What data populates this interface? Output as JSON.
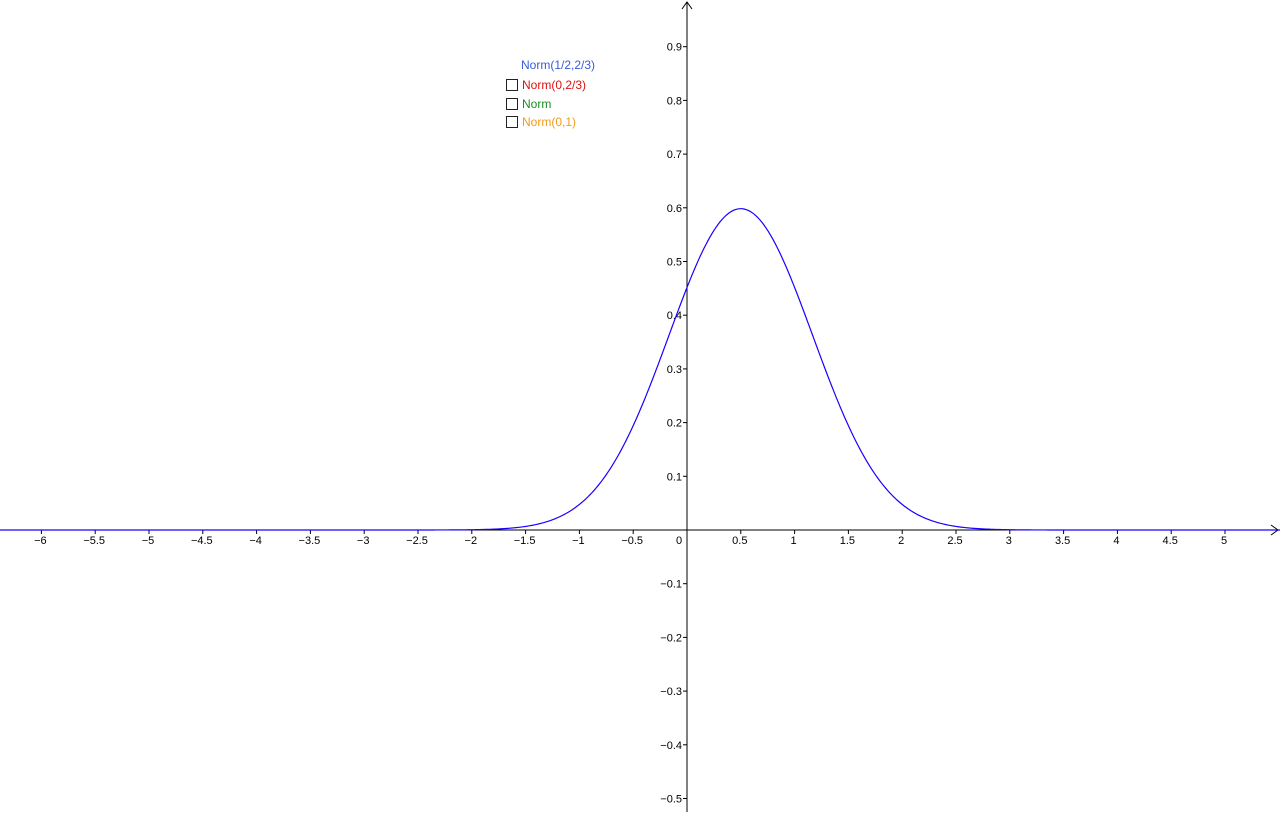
{
  "chart_data": {
    "type": "line",
    "title": "",
    "xlabel": "",
    "ylabel": "",
    "xlim": [
      -6.35,
      5.5
    ],
    "ylim": [
      -0.52,
      0.98
    ],
    "x_ticks": [
      -6,
      -5.5,
      -5,
      -4.5,
      -4,
      -3.5,
      -3,
      -2.5,
      -2,
      -1.5,
      -1,
      -0.5,
      0.5,
      1,
      1.5,
      2,
      2.5,
      3,
      3.5,
      4,
      4.5,
      5
    ],
    "y_ticks": [
      -0.5,
      -0.4,
      -0.3,
      -0.2,
      -0.1,
      0.1,
      0.2,
      0.3,
      0.4,
      0.5,
      0.6,
      0.7,
      0.8,
      0.9
    ],
    "origin_label": "0",
    "grid": false,
    "series": [
      {
        "name": "Norm(1/2,2/3)",
        "function": "normal_pdf",
        "mean": 0.5,
        "sd": 0.6667,
        "color": "#1a00ff",
        "visible": true,
        "sample_points": [
          [
            -2,
            0.0004
          ],
          [
            -1.5,
            0.007
          ],
          [
            -1,
            0.049
          ],
          [
            -0.5,
            0.194
          ],
          [
            0,
            0.453
          ],
          [
            0.5,
            0.598
          ],
          [
            1,
            0.453
          ],
          [
            1.5,
            0.194
          ],
          [
            2,
            0.049
          ],
          [
            2.5,
            0.007
          ],
          [
            3,
            0.0004
          ]
        ]
      }
    ]
  },
  "legend": {
    "title": {
      "label": "Norm(1/2,2/3)",
      "color": "#3a5cdb"
    },
    "items": [
      {
        "label": "Norm(0,2/3)",
        "color": "#e01010",
        "checked": false
      },
      {
        "label": "Norm",
        "color": "#16901a",
        "checked": false
      },
      {
        "label": "Norm(0,1)",
        "color": "#f59a14",
        "checked": false
      }
    ]
  }
}
